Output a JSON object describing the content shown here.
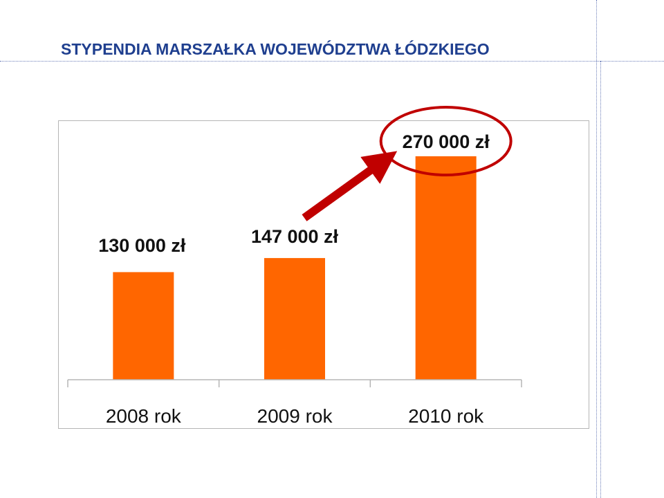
{
  "slide": {
    "title": "STYPENDIA MARSZAŁKA WOJEWÓDZTWA ŁÓDZKIEGO"
  },
  "colors": {
    "title": "#1f3f8f",
    "bar": "#ff6600",
    "arrow": "#c00000",
    "highlight_ellipse": "#c00000",
    "frame": "#b5b5b5"
  },
  "chart_data": {
    "type": "bar",
    "categories": [
      "2008 rok",
      "2009 rok",
      "2010 rok"
    ],
    "values": [
      130000,
      147000,
      270000
    ],
    "data_labels": [
      "130 000 zł",
      "147 000 zł",
      "270 000 zł"
    ],
    "title": "",
    "xlabel": "",
    "ylabel": "",
    "ylim": [
      0,
      300000
    ],
    "grid": false,
    "legend": "none",
    "annotations": [
      {
        "type": "arrow",
        "from_category": "2009 rok",
        "to_category": "2010 rok"
      },
      {
        "type": "ellipse",
        "target": "2010 rok data label"
      }
    ]
  }
}
